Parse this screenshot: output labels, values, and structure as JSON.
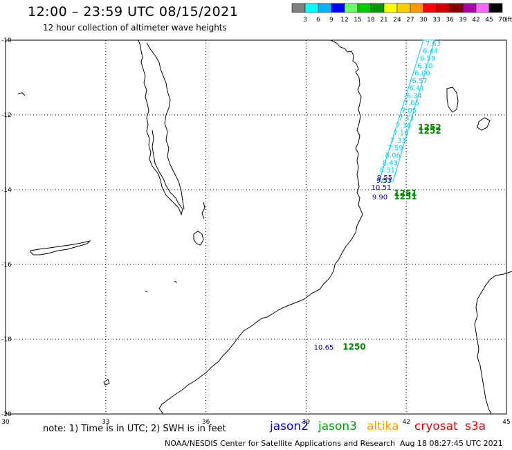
{
  "header": {
    "time_range": "12:00 – 23:59 UTC 08/15/2021",
    "subtitle": "12 hour collection of altimeter wave heights"
  },
  "legend": {
    "unit": "(ft)",
    "bins": [
      {
        "label": "3",
        "color": "#7f7f7f"
      },
      {
        "label": "6",
        "color": "#00ffff"
      },
      {
        "label": "9",
        "color": "#00b4ff"
      },
      {
        "label": "12",
        "color": "#0000ff"
      },
      {
        "label": "15",
        "color": "#66ff66"
      },
      {
        "label": "18",
        "color": "#00cc00"
      },
      {
        "label": "21",
        "color": "#009900"
      },
      {
        "label": "24",
        "color": "#ffff00"
      },
      {
        "label": "27",
        "color": "#ffcc00"
      },
      {
        "label": "30",
        "color": "#ff9900"
      },
      {
        "label": "33",
        "color": "#ff0000"
      },
      {
        "label": "36",
        "color": "#cc0000"
      },
      {
        "label": "39",
        "color": "#880000"
      },
      {
        "label": "42",
        "color": "#aa00aa"
      },
      {
        "label": "45",
        "color": "#ff66ff"
      },
      {
        "label": "70",
        "color": "#000000"
      }
    ]
  },
  "axes": {
    "lon_ticks": [
      "30",
      "33",
      "36",
      "39",
      "42",
      "45"
    ],
    "lat_ticks": [
      "-10",
      "-12",
      "-14",
      "-16",
      "-18",
      "-20"
    ]
  },
  "track_values": [
    "7.63",
    "6.44",
    "6.59",
    "6.10",
    "6.00",
    "6.57",
    "6.41",
    "6.34",
    "7.05",
    "7.05",
    "7.43",
    "7.36",
    "7.16",
    "7.33",
    "7.59",
    "8.06",
    "8.43",
    "8.31",
    "9.55"
  ],
  "points": [
    {
      "label": "9.53",
      "color": "#0000aa"
    },
    {
      "label": "10.51",
      "color": "#0000aa"
    },
    {
      "label": "9.90",
      "color": "#0000aa"
    },
    {
      "label": "10.65",
      "color": "#0000aa"
    },
    {
      "label": "1252",
      "color": "#008800"
    },
    {
      "label": "1252",
      "color": "#008800"
    },
    {
      "label": "1251",
      "color": "#008800"
    },
    {
      "label": "1251",
      "color": "#008800"
    },
    {
      "label": "1250",
      "color": "#008800"
    }
  ],
  "footer": {
    "note": "note:  1) Time is in UTC;  2) SWH is in feet",
    "satellites": [
      {
        "name": "jason2",
        "color": "#0000dd"
      },
      {
        "name": "jason3",
        "color": "#009900"
      },
      {
        "name": "altika",
        "color": "#ff9900"
      },
      {
        "name": "cryosat",
        "color": "#dd0000"
      },
      {
        "name": "s3a",
        "color": "#dd0000"
      }
    ],
    "credit": "NOAA/NESDIS Center for Satellite Applications and Research",
    "timestamp": "Aug 18 08:27:45 UTC 2021"
  }
}
